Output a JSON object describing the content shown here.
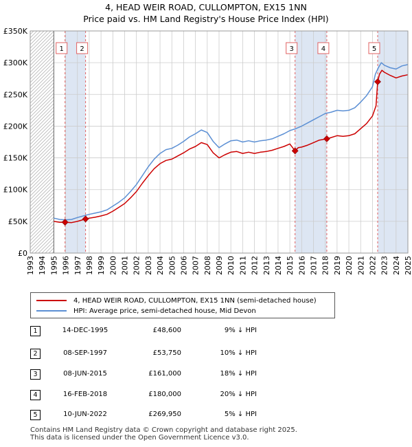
{
  "header": {
    "title_line1": "4, HEAD WEIR ROAD, CULLOMPTON, EX15 1NN",
    "title_line2": "Price paid vs. HM Land Registry's House Price Index (HPI)"
  },
  "legend": {
    "property_label": "4, HEAD WEIR ROAD, CULLOMPTON, EX15 1NN (semi-detached house)",
    "hpi_label": "HPI: Average price, semi-detached house, Mid Devon"
  },
  "colors": {
    "property": "#cc0000",
    "hpi": "#5b8fd4",
    "shade": "#dde6f3",
    "grid": "#cccccc",
    "marker_line": "#e06060"
  },
  "transactions": [
    {
      "num": "1",
      "date": "14-DEC-1995",
      "price": "£48,600",
      "hpi": "9% ↓ HPI"
    },
    {
      "num": "2",
      "date": "08-SEP-1997",
      "price": "£53,750",
      "hpi": "10% ↓ HPI"
    },
    {
      "num": "3",
      "date": "08-JUN-2015",
      "price": "£161,000",
      "hpi": "18% ↓ HPI"
    },
    {
      "num": "4",
      "date": "16-FEB-2018",
      "price": "£180,000",
      "hpi": "20% ↓ HPI"
    },
    {
      "num": "5",
      "date": "10-JUN-2022",
      "price": "£269,950",
      "hpi": "5% ↓ HPI"
    }
  ],
  "footer": {
    "line1": "Contains HM Land Registry data © Crown copyright and database right 2025.",
    "line2": "This data is licensed under the Open Government Licence v3.0."
  },
  "chart_data": {
    "type": "line",
    "title": "4, HEAD WEIR ROAD, CULLOMPTON, EX15 1NN",
    "subtitle": "Price paid vs. HM Land Registry's House Price Index (HPI)",
    "xlabel": "",
    "ylabel": "",
    "xlim": [
      1993,
      2025
    ],
    "ylim": [
      0,
      350000
    ],
    "y_ticks": [
      0,
      50000,
      100000,
      150000,
      200000,
      250000,
      300000,
      350000
    ],
    "y_tick_labels": [
      "£0",
      "£50K",
      "£100K",
      "£150K",
      "£200K",
      "£250K",
      "£300K",
      "£350K"
    ],
    "x_ticks": [
      1993,
      1994,
      1995,
      1996,
      1997,
      1998,
      1999,
      2000,
      2001,
      2002,
      2003,
      2004,
      2005,
      2006,
      2007,
      2008,
      2009,
      2010,
      2011,
      2012,
      2013,
      2014,
      2015,
      2016,
      2017,
      2018,
      2019,
      2020,
      2021,
      2022,
      2023,
      2024,
      2025
    ],
    "x_tick_labels": [
      "1993",
      "1994",
      "1995",
      "1996",
      "1997",
      "1998",
      "1999",
      "2000",
      "2001",
      "2002",
      "2003",
      "2004",
      "2005",
      "2006",
      "2007",
      "2008",
      "2009",
      "2010",
      "2011",
      "2012",
      "2013",
      "2014",
      "2015",
      "2016",
      "2017",
      "2018",
      "2019",
      "2020",
      "2021",
      "2022",
      "2023",
      "2024",
      "2025"
    ],
    "grid": true,
    "no_data_before": 1995,
    "shaded_ranges": [
      [
        1995.95,
        1997.69
      ],
      [
        2015.44,
        2018.13
      ],
      [
        2022.44,
        2025
      ]
    ],
    "series": [
      {
        "name": "HPI: Average price, semi-detached house, Mid Devon",
        "x": [
          1995.0,
          1995.5,
          1996.0,
          1996.5,
          1997.0,
          1997.5,
          1998.0,
          1998.5,
          1999.0,
          1999.5,
          2000.0,
          2000.5,
          2001.0,
          2001.5,
          2002.0,
          2002.5,
          2003.0,
          2003.5,
          2004.0,
          2004.5,
          2005.0,
          2005.5,
          2006.0,
          2006.5,
          2007.0,
          2007.5,
          2008.0,
          2008.5,
          2009.0,
          2009.5,
          2010.0,
          2010.5,
          2011.0,
          2011.5,
          2012.0,
          2012.5,
          2013.0,
          2013.5,
          2014.0,
          2014.5,
          2015.0,
          2015.5,
          2016.0,
          2016.5,
          2017.0,
          2017.5,
          2018.0,
          2018.5,
          2019.0,
          2019.5,
          2020.0,
          2020.5,
          2021.0,
          2021.5,
          2022.0,
          2022.25,
          2022.5,
          2022.75,
          2023.0,
          2023.5,
          2024.0,
          2024.5,
          2025.0
        ],
        "values": [
          55000,
          53000,
          52500,
          53000,
          56000,
          58500,
          61000,
          63000,
          65000,
          68000,
          74000,
          80000,
          87000,
          97000,
          108000,
          122000,
          136000,
          148000,
          157000,
          163000,
          165000,
          170000,
          176000,
          183000,
          188000,
          194000,
          190000,
          176000,
          166000,
          172000,
          177000,
          178000,
          175000,
          177000,
          175000,
          177000,
          178000,
          180000,
          184000,
          188000,
          193000,
          196000,
          200000,
          205000,
          210000,
          215000,
          220000,
          222000,
          225000,
          224000,
          225000,
          229000,
          238000,
          248000,
          262000,
          282000,
          292000,
          300000,
          296000,
          292000,
          290000,
          295000,
          297000
        ]
      },
      {
        "name": "4, HEAD WEIR ROAD, CULLOMPTON, EX15 1NN (semi-detached house)",
        "x": [
          1995.0,
          1995.5,
          1995.95,
          1996.5,
          1997.0,
          1997.69,
          1998.0,
          1998.5,
          1999.0,
          1999.5,
          2000.0,
          2000.5,
          2001.0,
          2001.5,
          2002.0,
          2002.5,
          2003.0,
          2003.5,
          2004.0,
          2004.5,
          2005.0,
          2005.5,
          2006.0,
          2006.5,
          2007.0,
          2007.5,
          2008.0,
          2008.5,
          2009.0,
          2009.5,
          2010.0,
          2010.5,
          2011.0,
          2011.5,
          2012.0,
          2012.5,
          2013.0,
          2013.5,
          2014.0,
          2014.5,
          2015.0,
          2015.44,
          2015.7,
          2016.0,
          2016.5,
          2017.0,
          2017.5,
          2018.13,
          2018.5,
          2019.0,
          2019.5,
          2020.0,
          2020.5,
          2021.0,
          2021.5,
          2022.0,
          2022.3,
          2022.44,
          2022.6,
          2022.8,
          2023.0,
          2023.5,
          2024.0,
          2024.5,
          2025.0
        ],
        "values": [
          50000,
          48500,
          48600,
          48000,
          50000,
          53750,
          55000,
          56500,
          58500,
          61000,
          66000,
          72000,
          78000,
          87000,
          97000,
          110000,
          122000,
          133000,
          141000,
          146000,
          148000,
          153000,
          158000,
          164000,
          168000,
          174000,
          171000,
          158000,
          150000,
          155000,
          159000,
          160000,
          157000,
          159000,
          157000,
          159000,
          160000,
          162000,
          165000,
          168000,
          172000,
          161000,
          166000,
          167000,
          170000,
          174000,
          178000,
          180000,
          182000,
          185000,
          184000,
          185000,
          188000,
          196000,
          204000,
          216000,
          232000,
          269950,
          282000,
          288000,
          285000,
          280000,
          276000,
          279000,
          281000
        ]
      }
    ],
    "markers": [
      {
        "label": "1",
        "x": 1995.95,
        "y": 48600
      },
      {
        "label": "2",
        "x": 1997.69,
        "y": 53750
      },
      {
        "label": "3",
        "x": 2015.44,
        "y": 161000
      },
      {
        "label": "4",
        "x": 2018.13,
        "y": 180000
      },
      {
        "label": "5",
        "x": 2022.44,
        "y": 269950
      }
    ]
  }
}
